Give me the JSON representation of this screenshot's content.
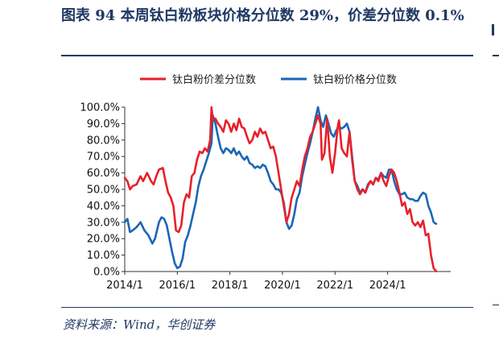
{
  "figure": {
    "title": "图表 94 本周钛白粉板块价格分位数 29%，价差分位数 0.1%",
    "source": "资料来源：Wind，华创证券"
  },
  "colors": {
    "accent": "#1f3864",
    "spread": "#e8202a",
    "price": "#1a66b5"
  },
  "chart_data": {
    "type": "line",
    "title": "",
    "xlabel": "",
    "ylabel": "",
    "xlim": [
      2014.0,
      2026.4
    ],
    "ylim": [
      0,
      100
    ],
    "yticks": [
      "0.0%",
      "10.0%",
      "20.0%",
      "30.0%",
      "40.0%",
      "50.0%",
      "60.0%",
      "70.0%",
      "80.0%",
      "90.0%",
      "100.0%"
    ],
    "xticks": [
      {
        "value": 2014.0,
        "label": "2014/1"
      },
      {
        "value": 2016.0,
        "label": "2016/1"
      },
      {
        "value": 2018.0,
        "label": "2018/1"
      },
      {
        "value": 2020.0,
        "label": "2020/1"
      },
      {
        "value": 2022.0,
        "label": "2022/1"
      },
      {
        "value": 2024.0,
        "label": "2024/1"
      }
    ],
    "grid": false,
    "legend_position": "top",
    "series": [
      {
        "name": "钛白粉价差分位数",
        "color": "#e8202a",
        "points": [
          [
            2014.0,
            57
          ],
          [
            2014.1,
            55
          ],
          [
            2014.2,
            50
          ],
          [
            2014.3,
            52
          ],
          [
            2014.45,
            53
          ],
          [
            2014.6,
            58
          ],
          [
            2014.7,
            55
          ],
          [
            2014.85,
            60
          ],
          [
            2015.0,
            55
          ],
          [
            2015.1,
            53
          ],
          [
            2015.2,
            58
          ],
          [
            2015.3,
            62
          ],
          [
            2015.45,
            63
          ],
          [
            2015.55,
            55
          ],
          [
            2015.65,
            48
          ],
          [
            2015.75,
            45
          ],
          [
            2015.85,
            40
          ],
          [
            2015.95,
            25
          ],
          [
            2016.05,
            24
          ],
          [
            2016.15,
            28
          ],
          [
            2016.25,
            42
          ],
          [
            2016.35,
            47
          ],
          [
            2016.45,
            45
          ],
          [
            2016.55,
            58
          ],
          [
            2016.65,
            60
          ],
          [
            2016.75,
            68
          ],
          [
            2016.85,
            73
          ],
          [
            2016.95,
            72
          ],
          [
            2017.05,
            75
          ],
          [
            2017.15,
            73
          ],
          [
            2017.25,
            80
          ],
          [
            2017.3,
            100
          ],
          [
            2017.35,
            92
          ],
          [
            2017.45,
            93
          ],
          [
            2017.55,
            90
          ],
          [
            2017.65,
            88
          ],
          [
            2017.75,
            85
          ],
          [
            2017.85,
            92
          ],
          [
            2017.95,
            90
          ],
          [
            2018.05,
            85
          ],
          [
            2018.15,
            90
          ],
          [
            2018.25,
            86
          ],
          [
            2018.35,
            93
          ],
          [
            2018.45,
            88
          ],
          [
            2018.55,
            87
          ],
          [
            2018.65,
            82
          ],
          [
            2018.75,
            78
          ],
          [
            2018.85,
            80
          ],
          [
            2018.95,
            85
          ],
          [
            2019.05,
            82
          ],
          [
            2019.15,
            87
          ],
          [
            2019.25,
            84
          ],
          [
            2019.35,
            85
          ],
          [
            2019.45,
            80
          ],
          [
            2019.55,
            75
          ],
          [
            2019.65,
            76
          ],
          [
            2019.75,
            70
          ],
          [
            2019.85,
            60
          ],
          [
            2019.95,
            50
          ],
          [
            2020.05,
            40
          ],
          [
            2020.15,
            30
          ],
          [
            2020.25,
            35
          ],
          [
            2020.35,
            45
          ],
          [
            2020.45,
            50
          ],
          [
            2020.55,
            55
          ],
          [
            2020.65,
            52
          ],
          [
            2020.75,
            62
          ],
          [
            2020.85,
            70
          ],
          [
            2020.95,
            75
          ],
          [
            2021.05,
            82
          ],
          [
            2021.15,
            85
          ],
          [
            2021.25,
            90
          ],
          [
            2021.35,
            95
          ],
          [
            2021.45,
            90
          ],
          [
            2021.5,
            68
          ],
          [
            2021.6,
            72
          ],
          [
            2021.7,
            93
          ],
          [
            2021.8,
            70
          ],
          [
            2021.9,
            60
          ],
          [
            2022.0,
            72
          ],
          [
            2022.1,
            88
          ],
          [
            2022.15,
            92
          ],
          [
            2022.25,
            75
          ],
          [
            2022.35,
            72
          ],
          [
            2022.45,
            70
          ],
          [
            2022.55,
            85
          ],
          [
            2022.65,
            68
          ],
          [
            2022.75,
            55
          ],
          [
            2022.85,
            50
          ],
          [
            2022.95,
            47
          ],
          [
            2023.05,
            50
          ],
          [
            2023.15,
            48
          ],
          [
            2023.25,
            52
          ],
          [
            2023.35,
            55
          ],
          [
            2023.45,
            53
          ],
          [
            2023.55,
            57
          ],
          [
            2023.65,
            55
          ],
          [
            2023.75,
            60
          ],
          [
            2023.85,
            55
          ],
          [
            2023.95,
            52
          ],
          [
            2024.05,
            58
          ],
          [
            2024.15,
            62
          ],
          [
            2024.25,
            60
          ],
          [
            2024.35,
            55
          ],
          [
            2024.45,
            48
          ],
          [
            2024.55,
            40
          ],
          [
            2024.65,
            42
          ],
          [
            2024.75,
            35
          ],
          [
            2024.85,
            38
          ],
          [
            2024.95,
            30
          ],
          [
            2025.05,
            28
          ],
          [
            2025.15,
            30
          ],
          [
            2025.25,
            27
          ],
          [
            2025.35,
            31
          ],
          [
            2025.45,
            22
          ],
          [
            2025.55,
            23
          ],
          [
            2025.65,
            10
          ],
          [
            2025.75,
            2
          ],
          [
            2025.85,
            0.1
          ]
        ]
      },
      {
        "name": "钛白粉价格分位数",
        "color": "#1a66b5",
        "points": [
          [
            2014.0,
            30
          ],
          [
            2014.1,
            32
          ],
          [
            2014.2,
            24
          ],
          [
            2014.3,
            25
          ],
          [
            2014.45,
            27
          ],
          [
            2014.6,
            30
          ],
          [
            2014.75,
            25
          ],
          [
            2014.9,
            22
          ],
          [
            2015.05,
            17
          ],
          [
            2015.15,
            20
          ],
          [
            2015.3,
            30
          ],
          [
            2015.4,
            33
          ],
          [
            2015.5,
            32
          ],
          [
            2015.6,
            28
          ],
          [
            2015.7,
            20
          ],
          [
            2015.8,
            12
          ],
          [
            2015.9,
            5
          ],
          [
            2016.0,
            2
          ],
          [
            2016.1,
            3
          ],
          [
            2016.2,
            8
          ],
          [
            2016.3,
            18
          ],
          [
            2016.4,
            22
          ],
          [
            2016.5,
            28
          ],
          [
            2016.6,
            35
          ],
          [
            2016.7,
            42
          ],
          [
            2016.8,
            52
          ],
          [
            2016.9,
            58
          ],
          [
            2017.0,
            62
          ],
          [
            2017.1,
            67
          ],
          [
            2017.2,
            72
          ],
          [
            2017.3,
            78
          ],
          [
            2017.35,
            95
          ],
          [
            2017.45,
            90
          ],
          [
            2017.55,
            82
          ],
          [
            2017.65,
            75
          ],
          [
            2017.75,
            72
          ],
          [
            2017.85,
            75
          ],
          [
            2017.95,
            74
          ],
          [
            2018.05,
            72
          ],
          [
            2018.15,
            75
          ],
          [
            2018.25,
            71
          ],
          [
            2018.35,
            73
          ],
          [
            2018.45,
            70
          ],
          [
            2018.55,
            68
          ],
          [
            2018.65,
            70
          ],
          [
            2018.75,
            66
          ],
          [
            2018.85,
            65
          ],
          [
            2018.95,
            63
          ],
          [
            2019.05,
            64
          ],
          [
            2019.15,
            63
          ],
          [
            2019.25,
            65
          ],
          [
            2019.35,
            64
          ],
          [
            2019.45,
            60
          ],
          [
            2019.55,
            55
          ],
          [
            2019.65,
            53
          ],
          [
            2019.75,
            50
          ],
          [
            2019.85,
            50
          ],
          [
            2019.95,
            48
          ],
          [
            2020.05,
            42
          ],
          [
            2020.15,
            30
          ],
          [
            2020.25,
            26
          ],
          [
            2020.35,
            28
          ],
          [
            2020.45,
            35
          ],
          [
            2020.55,
            44
          ],
          [
            2020.65,
            48
          ],
          [
            2020.75,
            58
          ],
          [
            2020.85,
            65
          ],
          [
            2020.95,
            72
          ],
          [
            2021.05,
            78
          ],
          [
            2021.15,
            85
          ],
          [
            2021.25,
            93
          ],
          [
            2021.35,
            100
          ],
          [
            2021.45,
            92
          ],
          [
            2021.55,
            88
          ],
          [
            2021.65,
            95
          ],
          [
            2021.75,
            90
          ],
          [
            2021.85,
            84
          ],
          [
            2021.95,
            82
          ],
          [
            2022.05,
            86
          ],
          [
            2022.15,
            88
          ],
          [
            2022.25,
            87
          ],
          [
            2022.35,
            88
          ],
          [
            2022.45,
            90
          ],
          [
            2022.55,
            85
          ],
          [
            2022.65,
            70
          ],
          [
            2022.75,
            55
          ],
          [
            2022.85,
            52
          ],
          [
            2022.95,
            48
          ],
          [
            2023.05,
            50
          ],
          [
            2023.15,
            48
          ],
          [
            2023.25,
            53
          ],
          [
            2023.35,
            55
          ],
          [
            2023.45,
            53
          ],
          [
            2023.55,
            57
          ],
          [
            2023.65,
            56
          ],
          [
            2023.75,
            60
          ],
          [
            2023.85,
            58
          ],
          [
            2023.95,
            57
          ],
          [
            2024.05,
            62
          ],
          [
            2024.15,
            62
          ],
          [
            2024.25,
            55
          ],
          [
            2024.35,
            50
          ],
          [
            2024.45,
            47
          ],
          [
            2024.55,
            47
          ],
          [
            2024.65,
            48
          ],
          [
            2024.75,
            45
          ],
          [
            2024.85,
            44
          ],
          [
            2024.95,
            44
          ],
          [
            2025.05,
            43
          ],
          [
            2025.15,
            43
          ],
          [
            2025.25,
            46
          ],
          [
            2025.35,
            48
          ],
          [
            2025.45,
            47
          ],
          [
            2025.55,
            40
          ],
          [
            2025.65,
            36
          ],
          [
            2025.75,
            30
          ],
          [
            2025.85,
            29
          ]
        ]
      }
    ]
  }
}
